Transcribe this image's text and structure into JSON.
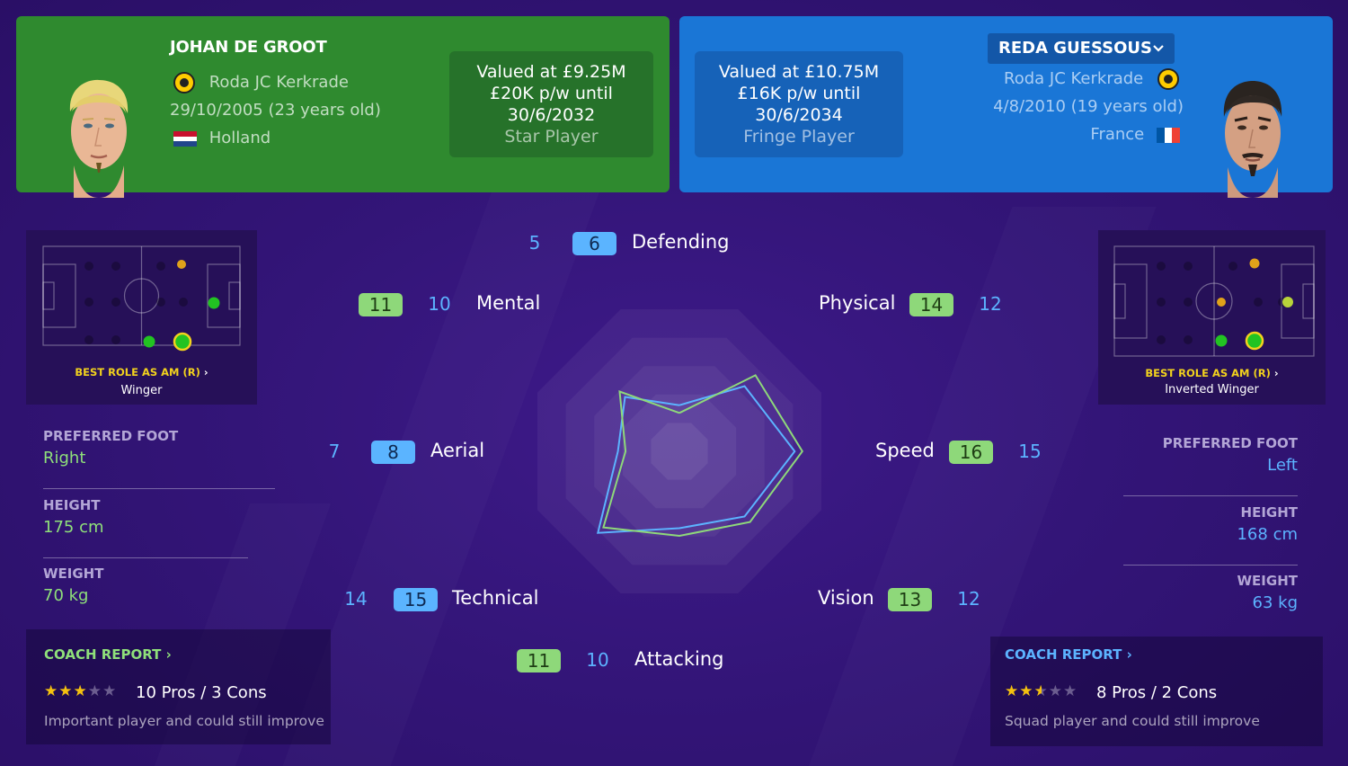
{
  "left_player": {
    "name": "JOHAN DE GROOT",
    "club": "Roda JC Kerkrade",
    "dob": "29/10/2005 (23 years old)",
    "nationality": "Holland",
    "value_line1": "Valued at £9.25M",
    "value_line2": "£20K p/w until",
    "value_line3": "30/6/2032",
    "status": "Star Player",
    "best_role_title": "BEST ROLE AS AM (R)",
    "best_role": "Winger",
    "preferred_foot_label": "PREFERRED FOOT",
    "preferred_foot": "Right",
    "height_label": "HEIGHT",
    "height": "175 cm",
    "weight_label": "WEIGHT",
    "weight": "70 kg",
    "coach_report_label": "COACH REPORT",
    "rating_stars": 3,
    "pros_cons": "10 Pros / 3 Cons",
    "coach_summary": "Important player and could still improve",
    "colors": {
      "card": "#2f8a2f",
      "accent": "#8ed87a"
    }
  },
  "right_player": {
    "name": "REDA GUESSOUS",
    "club": "Roda JC Kerkrade",
    "dob": "4/8/2010 (19 years old)",
    "nationality": "France",
    "value_line1": "Valued at £10.75M",
    "value_line2": "£16K p/w until",
    "value_line3": "30/6/2034",
    "status": "Fringe Player",
    "best_role_title": "BEST ROLE AS AM (R)",
    "best_role": "Inverted Winger",
    "preferred_foot_label": "PREFERRED FOOT",
    "preferred_foot": "Left",
    "height_label": "HEIGHT",
    "height": "168 cm",
    "weight_label": "WEIGHT",
    "weight": "63 kg",
    "coach_report_label": "COACH REPORT",
    "rating_stars": 2.5,
    "pros_cons": "8 Pros / 2 Cons",
    "coach_summary": "Squad player and could still improve",
    "colors": {
      "card": "#1a76d6",
      "accent": "#5bb4ff"
    }
  },
  "comparison": {
    "categories": [
      {
        "key": "defending",
        "label": "Defending",
        "left": "5",
        "right": "6"
      },
      {
        "key": "physical",
        "label": "Physical",
        "left": "14",
        "right": "12"
      },
      {
        "key": "speed",
        "label": "Speed",
        "left": "16",
        "right": "15"
      },
      {
        "key": "vision",
        "label": "Vision",
        "left": "13",
        "right": "12"
      },
      {
        "key": "attacking",
        "label": "Attacking",
        "left": "11",
        "right": "10"
      },
      {
        "key": "technical",
        "label": "Technical",
        "left": "14",
        "right": "15"
      },
      {
        "key": "aerial",
        "label": "Aerial",
        "left": "7",
        "right": "8"
      },
      {
        "key": "mental",
        "label": "Mental",
        "left": "11",
        "right": "10"
      }
    ]
  },
  "icons": {
    "chevron": "chevron-right-icon",
    "dropdown": "chevron-down-icon",
    "crest": "club-crest-icon",
    "star": "star-icon"
  }
}
